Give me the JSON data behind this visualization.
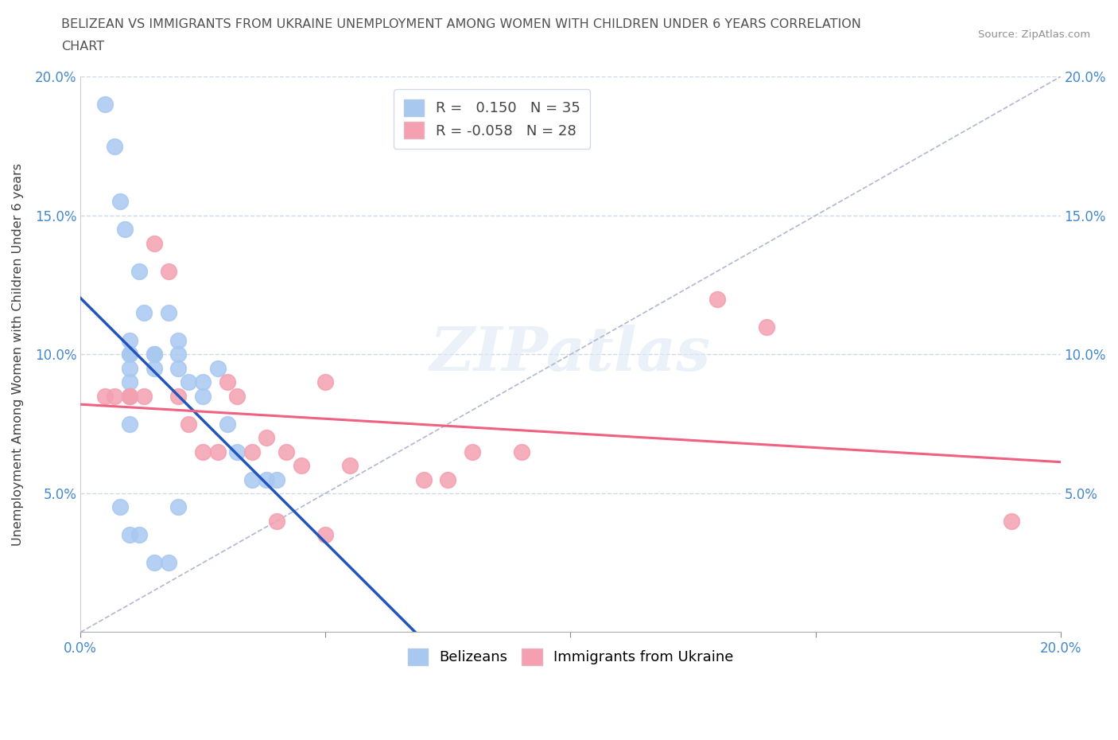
{
  "title_line1": "BELIZEAN VS IMMIGRANTS FROM UKRAINE UNEMPLOYMENT AMONG WOMEN WITH CHILDREN UNDER 6 YEARS CORRELATION",
  "title_line2": "CHART",
  "source": "Source: ZipAtlas.com",
  "ylabel": "Unemployment Among Women with Children Under 6 years",
  "xlim": [
    0.0,
    0.2
  ],
  "ylim": [
    0.0,
    0.2
  ],
  "xticks": [
    0.0,
    0.05,
    0.1,
    0.15,
    0.2
  ],
  "yticks": [
    0.05,
    0.1,
    0.15,
    0.2
  ],
  "xticklabels_bottom": [
    "0.0%",
    "",
    "",
    "",
    "20.0%"
  ],
  "xticklabels_top": [],
  "yticklabels_left": [
    "5.0%",
    "10.0%",
    "15.0%",
    "20.0%"
  ],
  "yticklabels_right": [
    "5.0%",
    "10.0%",
    "15.0%",
    "20.0%"
  ],
  "belizean_color": "#a8c8f0",
  "ukraine_color": "#f4a0b0",
  "belizean_line_color": "#2255bb",
  "ukraine_line_color": "#f06080",
  "diagonal_color": "#b0b8d0",
  "R_belizean": 0.15,
  "N_belizean": 35,
  "R_ukraine": -0.058,
  "N_ukraine": 28,
  "legend_label_belizean": "Belizeans",
  "legend_label_ukraine": "Immigrants from Ukraine",
  "watermark_text": "ZIPatlas",
  "belizean_x": [
    0.005,
    0.007,
    0.008,
    0.009,
    0.01,
    0.01,
    0.01,
    0.01,
    0.01,
    0.01,
    0.01,
    0.012,
    0.013,
    0.015,
    0.015,
    0.015,
    0.018,
    0.02,
    0.02,
    0.02,
    0.022,
    0.025,
    0.025,
    0.028,
    0.03,
    0.032,
    0.035,
    0.038,
    0.04,
    0.008,
    0.01,
    0.012,
    0.015,
    0.018,
    0.02
  ],
  "belizean_y": [
    0.19,
    0.175,
    0.155,
    0.145,
    0.105,
    0.1,
    0.1,
    0.095,
    0.09,
    0.085,
    0.075,
    0.13,
    0.115,
    0.1,
    0.1,
    0.095,
    0.115,
    0.105,
    0.1,
    0.095,
    0.09,
    0.09,
    0.085,
    0.095,
    0.075,
    0.065,
    0.055,
    0.055,
    0.055,
    0.045,
    0.035,
    0.035,
    0.025,
    0.025,
    0.045
  ],
  "ukraine_x": [
    0.005,
    0.007,
    0.01,
    0.01,
    0.013,
    0.015,
    0.018,
    0.02,
    0.022,
    0.025,
    0.028,
    0.03,
    0.032,
    0.035,
    0.038,
    0.04,
    0.042,
    0.045,
    0.05,
    0.055,
    0.07,
    0.075,
    0.08,
    0.09,
    0.13,
    0.14,
    0.19,
    0.05
  ],
  "ukraine_y": [
    0.085,
    0.085,
    0.085,
    0.085,
    0.085,
    0.14,
    0.13,
    0.085,
    0.075,
    0.065,
    0.065,
    0.09,
    0.085,
    0.065,
    0.07,
    0.04,
    0.065,
    0.06,
    0.09,
    0.06,
    0.055,
    0.055,
    0.065,
    0.065,
    0.12,
    0.11,
    0.04,
    0.035
  ]
}
